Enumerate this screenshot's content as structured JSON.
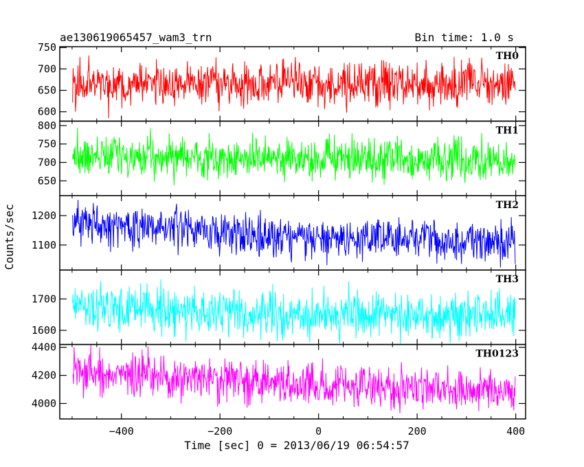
{
  "header": {
    "title": "ae130619065457_wam3_trn",
    "bin_time": "Bin time: 1.0 s"
  },
  "chart_data": {
    "type": "line",
    "xlabel": "Time [sec] 0 = 2013/06/19 06:54:57",
    "ylabel": "Counts/sec",
    "xlim": [
      -525,
      420
    ],
    "x_range": [
      -499,
      399
    ],
    "x_step": 1.0,
    "x_ticks": [
      -400,
      -200,
      0,
      200,
      400
    ],
    "x_tick_labels": [
      "−400",
      "−200",
      "0",
      "200",
      "400"
    ],
    "panels": [
      {
        "name": "TH0",
        "color": "#ff0000",
        "ylim": [
          578,
          752
        ],
        "y_ticks": [
          600,
          650,
          700,
          750
        ],
        "y_tick_labels": [
          "600",
          "650",
          "700",
          "750"
        ],
        "trend": [
          [
            -499,
            665
          ],
          [
            399,
            665
          ]
        ],
        "noise": 27
      },
      {
        "name": "TH1",
        "color": "#00ff00",
        "ylim": [
          610,
          812
        ],
        "y_ticks": [
          650,
          700,
          750,
          800
        ],
        "y_tick_labels": [
          "650",
          "700",
          "750",
          "800"
        ],
        "trend": [
          [
            -499,
            720
          ],
          [
            0,
            707
          ],
          [
            399,
            702
          ]
        ],
        "noise": 27
      },
      {
        "name": "TH2",
        "color": "#0000ff",
        "ylim": [
          1015,
          1268
        ],
        "y_ticks": [
          1100,
          1200
        ],
        "y_tick_labels": [
          "1100",
          "1200"
        ],
        "trend": [
          [
            -499,
            1175
          ],
          [
            -300,
            1155
          ],
          [
            0,
            1125
          ],
          [
            399,
            1110
          ]
        ],
        "noise": 34
      },
      {
        "name": "TH3",
        "color": "#00ffff",
        "ylim": [
          1555,
          1792
        ],
        "y_ticks": [
          1600,
          1700
        ],
        "y_tick_labels": [
          "1600",
          "1700"
        ],
        "trend": [
          [
            -499,
            1678
          ],
          [
            -200,
            1655
          ],
          [
            0,
            1650
          ],
          [
            399,
            1650
          ]
        ],
        "noise": 36
      },
      {
        "name": "TH0123",
        "color": "#ff00ff",
        "ylim": [
          3890,
          4420
        ],
        "y_ticks": [
          4000,
          4200,
          4400
        ],
        "y_tick_labels": [
          "4000",
          "4200",
          "4400"
        ],
        "trend": [
          [
            -499,
            4225
          ],
          [
            -300,
            4180
          ],
          [
            0,
            4130
          ],
          [
            399,
            4090
          ]
        ],
        "noise": 75
      }
    ]
  }
}
